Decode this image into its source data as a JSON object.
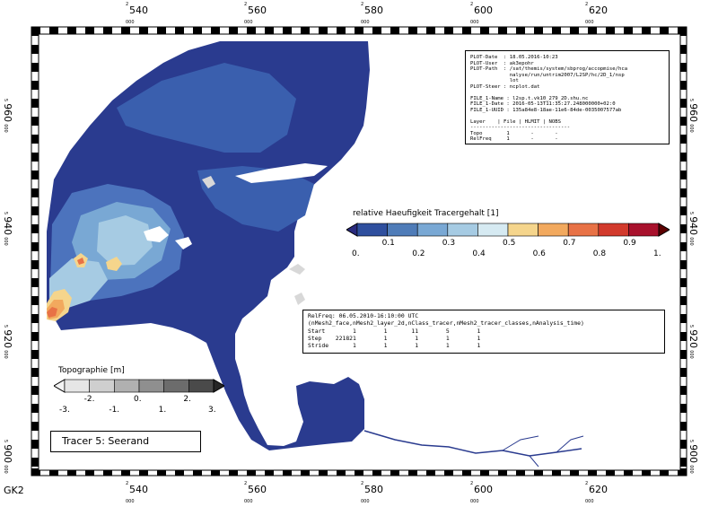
{
  "grid_label": "GK2",
  "x_axis": {
    "major_labels": [
      "540",
      "560",
      "580",
      "600",
      "620"
    ],
    "prefix": "2",
    "suffix": "000"
  },
  "y_axis": {
    "major_labels": [
      "960",
      "940",
      "920",
      "900"
    ],
    "prefix": "5",
    "suffix": "000"
  },
  "info": {
    "lines": [
      "PLOT-Date  : 18.05.2016-10:23",
      "PLOT-User  : ak3epohr",
      "PLOT-Path  : /sat/themis/system/sbprog/accopmise/hca",
      "             nalyse/run/untrim2007/L2SP/hc/2D_1/nsp",
      "             lot",
      "PLOT-Steer : ncplot.dat",
      "",
      "FILE_1-Name : l2sp.t.vk10_279_2D.shu.nc",
      "FILE_1-Date : 2016-05-13T11:35:27.248000000+02:0",
      "FILE_1-UUID : 135a84e8-18ae-11e6-84de-0035007577ab",
      "",
      "Layer    | File | HLMIT | NOBS",
      "---------------------------------",
      "Topo        1       -       -",
      "RelFreq     1       -       -"
    ]
  },
  "relfreq": {
    "lines": [
      "RelFreq: 06.05.2010-16:10:00 UTC",
      "(nMesh2_face,nMesh2_layer_2d,nClass_tracer,nMesh2_tracer_classes,nAnalysis_time)",
      "Start        1        1       11        5        1",
      "Step    221821        1        1        1        1",
      "Stride       1        1        1        1        1"
    ]
  },
  "tracer_colorbar": {
    "title": "relative Haeufigkeit Tracergehalt [1]",
    "colors": [
      "#2a2a7e",
      "#2f4f9e",
      "#4f7cb8",
      "#79a8d4",
      "#a6cbe3",
      "#d6eaf2",
      "#f5d58c",
      "#f2a95e",
      "#e87246",
      "#d23a2c",
      "#a8112c",
      "#5c0000"
    ],
    "ticks_low": [
      "0.",
      "0.2",
      "0.4",
      "0.6",
      "0.8",
      "1."
    ],
    "ticks_high": [
      "0.1",
      "0.3",
      "0.5",
      "0.7",
      "0.9"
    ]
  },
  "topo_colorbar": {
    "title": "Topographie [m]",
    "colors": [
      "#f4f4f4",
      "#e6e6e6",
      "#cfcfcf",
      "#b0b0b0",
      "#8f8f8f",
      "#6c6c6c",
      "#4a4a4a",
      "#262626"
    ],
    "ticks_low": [
      "-3.",
      "-1.",
      "1.",
      "3."
    ],
    "ticks_high": [
      "-2.",
      "0.",
      "2."
    ]
  },
  "tracer_label": "Tracer 5: Seerand",
  "colors": {
    "water_deep": "#2a3b8f",
    "water_mid": "#3a5fae",
    "water_light": "#6a9ad0",
    "land": "#ffffff",
    "land_gray": "#d8d8d8",
    "river": "#2a3b8f"
  }
}
